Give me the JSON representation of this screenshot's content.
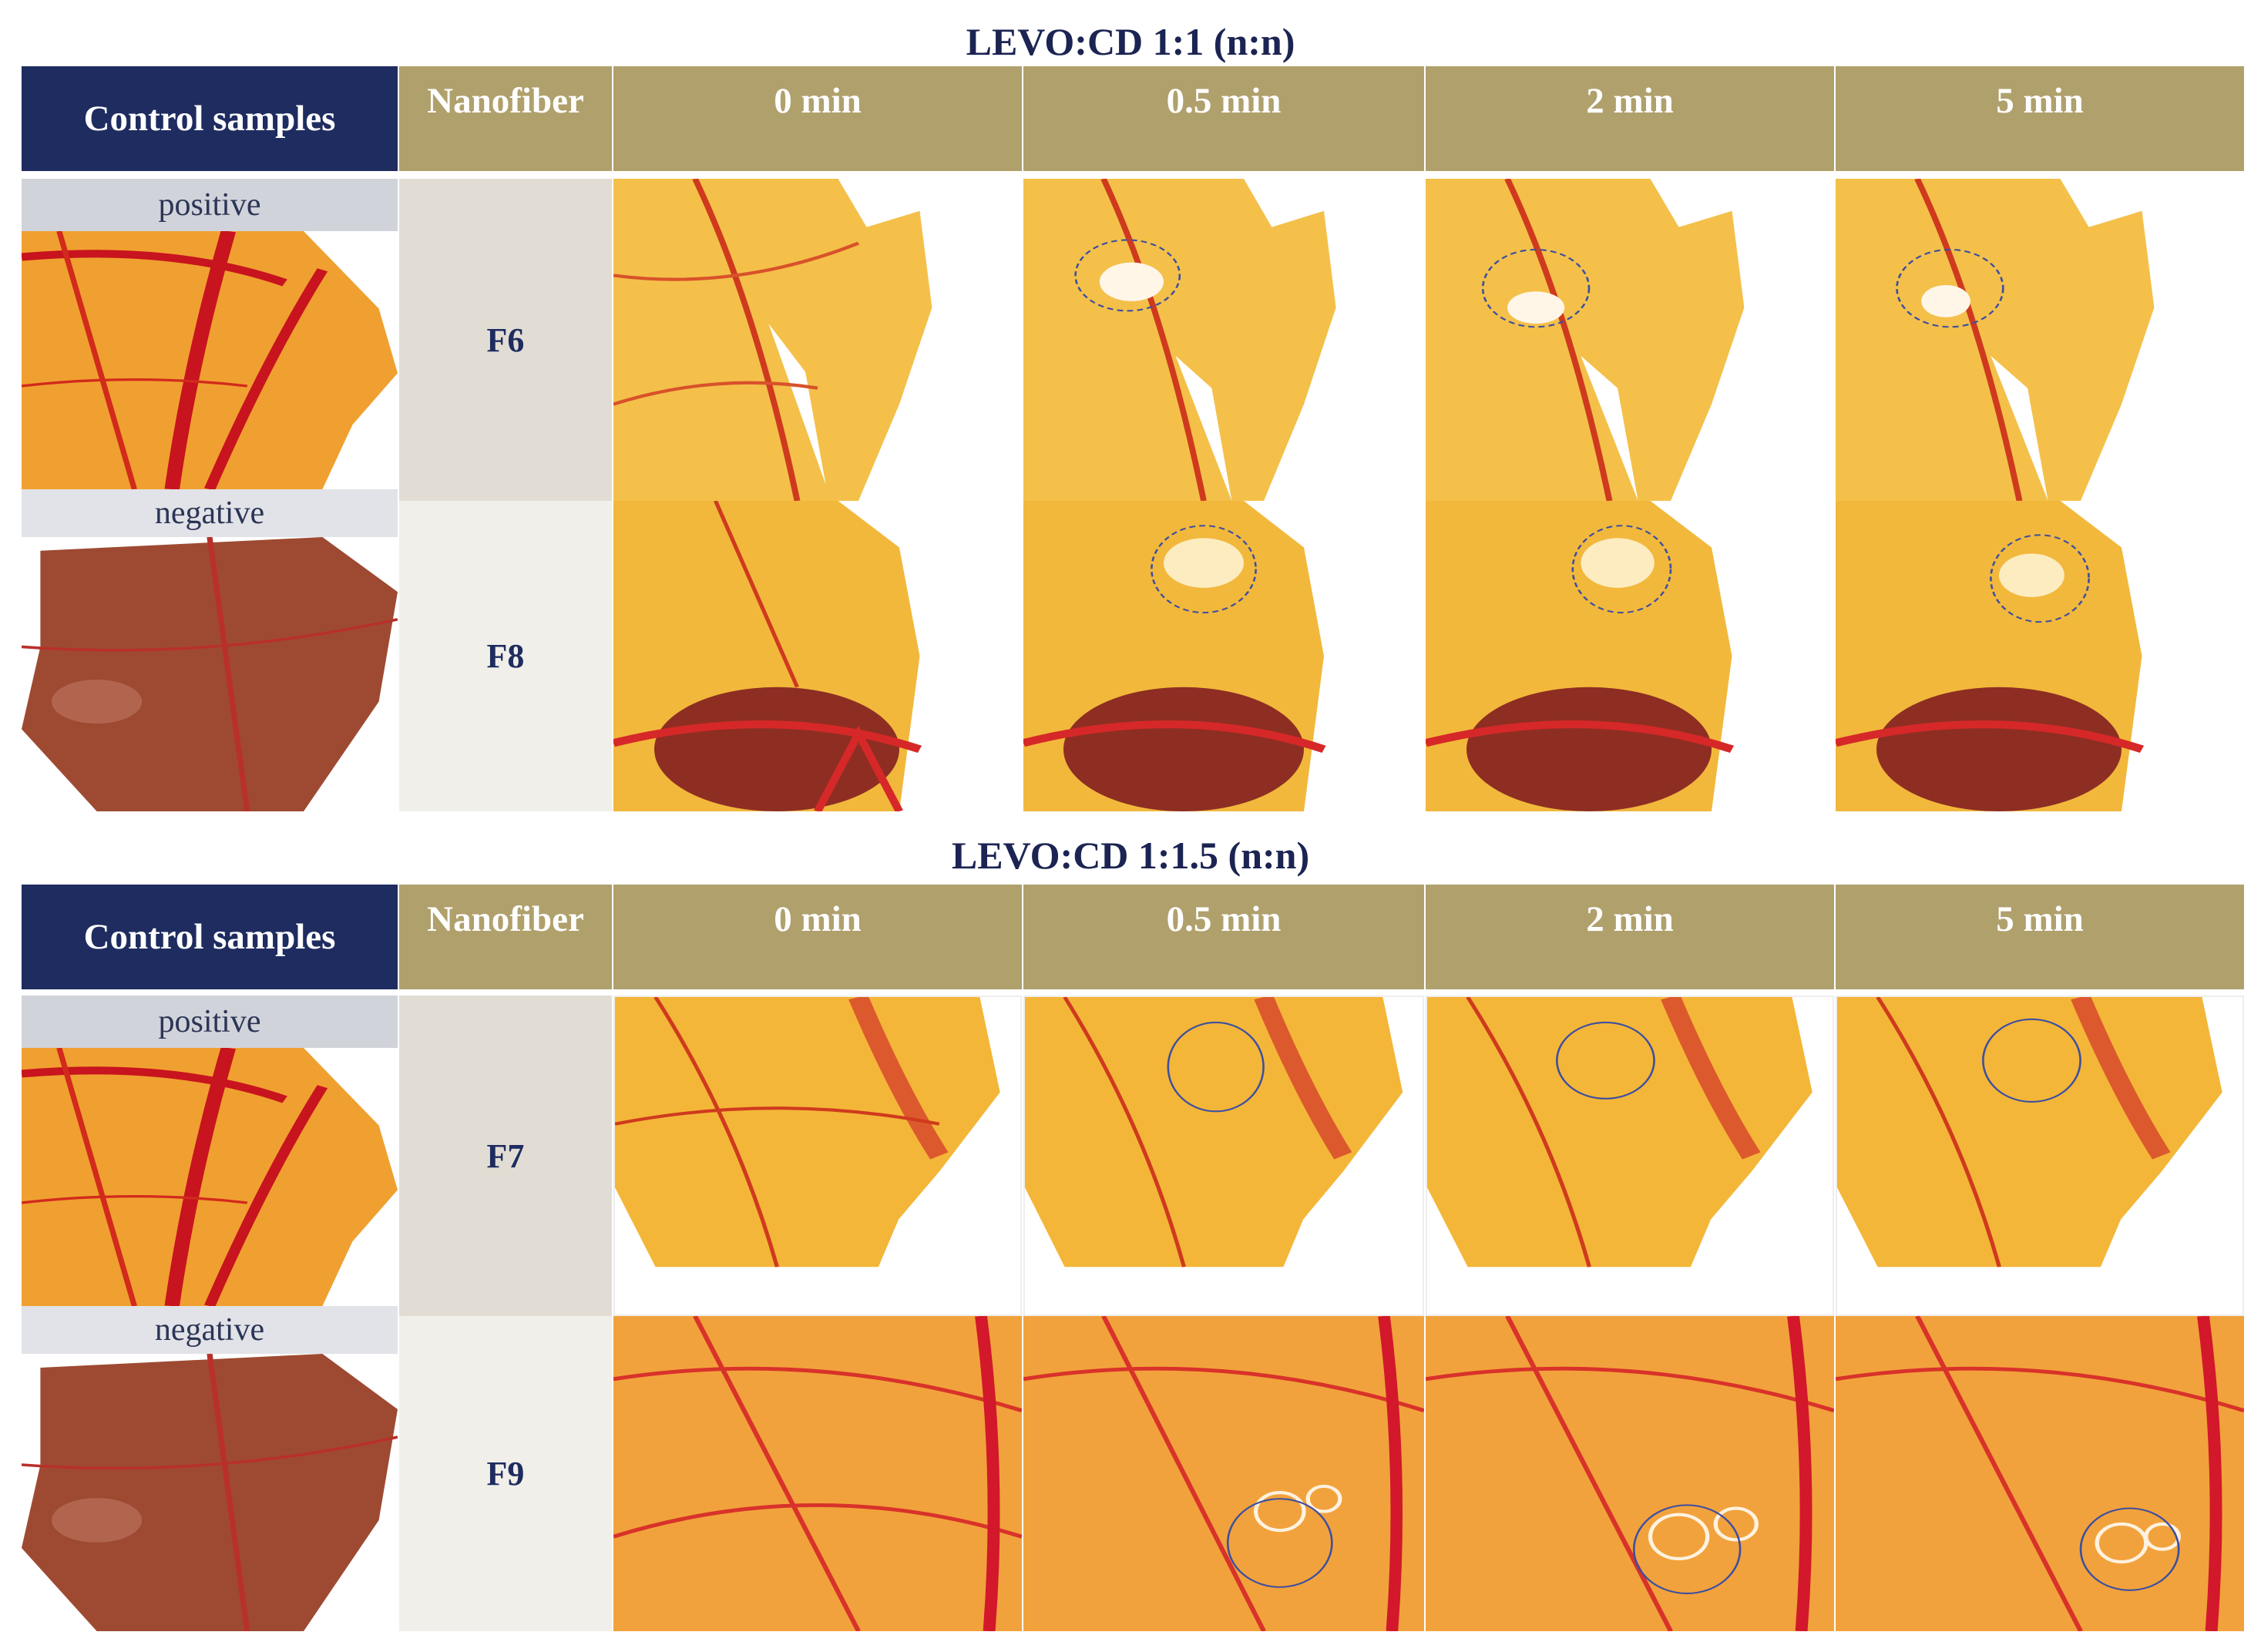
{
  "figure": {
    "panels": [
      {
        "title": "LEVO:CD 1:1 (n:n)",
        "header": {
          "control": "Control samples",
          "nanofiber": "Nanofiber",
          "times": [
            "0 min",
            "0.5 min",
            "2 min",
            "5 min"
          ]
        },
        "controls": {
          "positive": "positive",
          "negative": "negative"
        },
        "rows": [
          {
            "fiber": "F6"
          },
          {
            "fiber": "F8"
          }
        ]
      },
      {
        "title": "LEVO:CD 1:1.5 (n:n)",
        "header": {
          "control": "Control samples",
          "nanofiber": "Nanofiber",
          "times": [
            "0 min",
            "0.5 min",
            "2 min",
            "5 min"
          ]
        },
        "controls": {
          "positive": "positive",
          "negative": "negative"
        },
        "rows": [
          {
            "fiber": "F7"
          },
          {
            "fiber": "F9"
          }
        ]
      }
    ]
  },
  "colors": {
    "control_header": "#1e2c60",
    "gold_header": "#b0a06c",
    "label_strip": "#d1d3da",
    "fiber_cell_top": "#e2ddd4",
    "fiber_cell_bottom": "#f1efea"
  }
}
